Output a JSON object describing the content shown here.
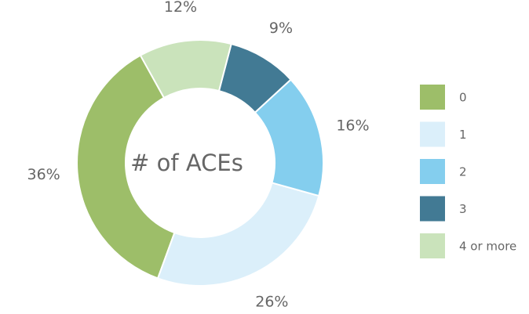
{
  "chart_data": {
    "type": "pie",
    "title": "# of ACEs",
    "categories": [
      "0",
      "1",
      "2",
      "3",
      "4 or more"
    ],
    "values": [
      36,
      26,
      16,
      9,
      12
    ],
    "value_labels": [
      "36%",
      "26%",
      "16%",
      "9%",
      "12%"
    ],
    "colors": [
      "#9dbe69",
      "#dbeffa",
      "#84ceee",
      "#427a94",
      "#cae3bb"
    ],
    "legend": "right"
  }
}
